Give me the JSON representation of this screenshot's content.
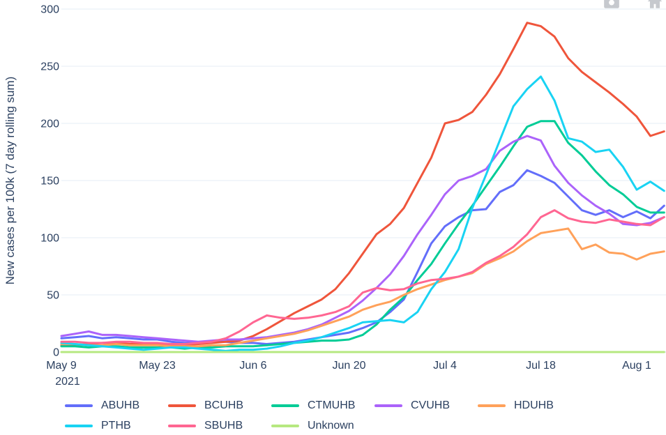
{
  "modebar": {
    "buttons": [
      {
        "icon": "camera-icon"
      },
      {
        "icon": "home-icon"
      }
    ],
    "icon_color": "#c6c9ce"
  },
  "yaxis": {
    "title": "New cases per 100k (7 day rolling sum)",
    "ticks": [
      0,
      50,
      100,
      150,
      200,
      250,
      300
    ]
  },
  "xaxis": {
    "ticks": [
      {
        "day": 0,
        "label": "May 9",
        "sublabel": "2021"
      },
      {
        "day": 14,
        "label": "May 23"
      },
      {
        "day": 28,
        "label": "Jun 6"
      },
      {
        "day": 42,
        "label": "Jun 20"
      },
      {
        "day": 56,
        "label": "Jul 4"
      },
      {
        "day": 70,
        "label": "Jul 18"
      },
      {
        "day": 84,
        "label": "Aug 1"
      }
    ]
  },
  "chart_data": {
    "type": "line",
    "title": "",
    "xlabel": "",
    "ylabel": "New cases per 100k (7 day rolling sum)",
    "ylim": [
      0,
      300
    ],
    "x_unit": "days since May 9 2021",
    "x_tick_labels": [
      "May 9 2021",
      "May 23",
      "Jun 6",
      "Jun 20",
      "Jul 4",
      "Jul 18",
      "Aug 1"
    ],
    "grid": "horizontal-only",
    "legend_position": "bottom",
    "x": [
      0,
      2,
      4,
      6,
      8,
      10,
      12,
      14,
      16,
      18,
      20,
      22,
      24,
      26,
      28,
      30,
      32,
      34,
      36,
      38,
      40,
      42,
      44,
      46,
      48,
      50,
      52,
      54,
      56,
      58,
      60,
      62,
      64,
      66,
      68,
      70,
      72,
      74,
      76,
      78,
      80,
      82,
      84,
      86,
      88
    ],
    "series": [
      {
        "name": "ABUHB",
        "color": "#636EFA",
        "values": [
          12,
          13,
          14,
          12,
          13,
          12,
          11,
          11,
          9,
          8,
          8,
          9,
          9,
          8,
          8,
          7,
          8,
          9,
          11,
          13,
          15,
          17,
          21,
          26,
          35,
          46,
          70,
          95,
          110,
          118,
          124,
          125,
          140,
          146,
          159,
          154,
          148,
          136,
          124,
          120,
          124,
          118,
          123,
          117,
          128
        ]
      },
      {
        "name": "BCUHB",
        "color": "#EF553B",
        "values": [
          6,
          6,
          7,
          8,
          8,
          7,
          7,
          7,
          6,
          6,
          7,
          8,
          9,
          10,
          14,
          20,
          27,
          34,
          40,
          46,
          55,
          69,
          86,
          103,
          112,
          126,
          148,
          170,
          200,
          203,
          210,
          225,
          243,
          265,
          288,
          285,
          276,
          257,
          245,
          236,
          227,
          217,
          206,
          189,
          193
        ]
      },
      {
        "name": "CTMUHB",
        "color": "#00CC96",
        "values": [
          5,
          5,
          4,
          5,
          5,
          4,
          4,
          4,
          4,
          3,
          4,
          4,
          5,
          5,
          5,
          6,
          7,
          8,
          9,
          10,
          10,
          11,
          15,
          24,
          37,
          48,
          63,
          77,
          95,
          112,
          128,
          145,
          162,
          180,
          197,
          202,
          202,
          183,
          172,
          158,
          146,
          138,
          127,
          122,
          122
        ]
      },
      {
        "name": "CVUHB",
        "color": "#AB63FA",
        "values": [
          14,
          16,
          18,
          15,
          15,
          14,
          13,
          12,
          11,
          10,
          9,
          10,
          11,
          11,
          12,
          13,
          15,
          17,
          20,
          24,
          30,
          36,
          45,
          56,
          68,
          84,
          103,
          120,
          138,
          150,
          154,
          160,
          176,
          184,
          189,
          185,
          163,
          148,
          137,
          128,
          121,
          112,
          111,
          113,
          118
        ]
      },
      {
        "name": "HDUHB",
        "color": "#FFA15A",
        "values": [
          7,
          7,
          6,
          6,
          7,
          6,
          6,
          6,
          5,
          5,
          5,
          6,
          6,
          8,
          10,
          12,
          14,
          16,
          19,
          23,
          27,
          31,
          37,
          41,
          44,
          50,
          55,
          59,
          63,
          66,
          69,
          77,
          82,
          88,
          97,
          104,
          106,
          108,
          90,
          94,
          87,
          86,
          81,
          86,
          88
        ]
      },
      {
        "name": "PTHB",
        "color": "#19D3F3",
        "values": [
          8,
          7,
          6,
          5,
          4,
          3,
          2,
          3,
          4,
          4,
          3,
          2,
          1,
          2,
          2,
          3,
          5,
          8,
          10,
          13,
          17,
          21,
          26,
          27,
          28,
          26,
          35,
          55,
          70,
          90,
          126,
          155,
          185,
          215,
          230,
          241,
          220,
          187,
          184,
          175,
          177,
          162,
          142,
          149,
          141
        ]
      },
      {
        "name": "SBUHB",
        "color": "#FF6692",
        "values": [
          9,
          9,
          8,
          8,
          9,
          9,
          8,
          8,
          7,
          7,
          8,
          9,
          12,
          18,
          26,
          32,
          30,
          29,
          30,
          32,
          35,
          40,
          52,
          56,
          54,
          55,
          60,
          63,
          64,
          66,
          70,
          78,
          84,
          92,
          103,
          118,
          124,
          117,
          114,
          113,
          116,
          114,
          112,
          111,
          118
        ]
      },
      {
        "name": "Unknown",
        "color": "#B6E880",
        "values": [
          0,
          0,
          0,
          0,
          0,
          0,
          0,
          0,
          0,
          0,
          0,
          0,
          0,
          0,
          0,
          0,
          0,
          0,
          0,
          0,
          0,
          0,
          0,
          0,
          0,
          0,
          0,
          0,
          0,
          0,
          0,
          0,
          0,
          0,
          0,
          0,
          0,
          0,
          0,
          0,
          0,
          0,
          0,
          0,
          0
        ]
      }
    ]
  },
  "layout_colors": {
    "text": "#2a3f5f",
    "grid": "#EBF0F8",
    "background": "#ffffff"
  }
}
